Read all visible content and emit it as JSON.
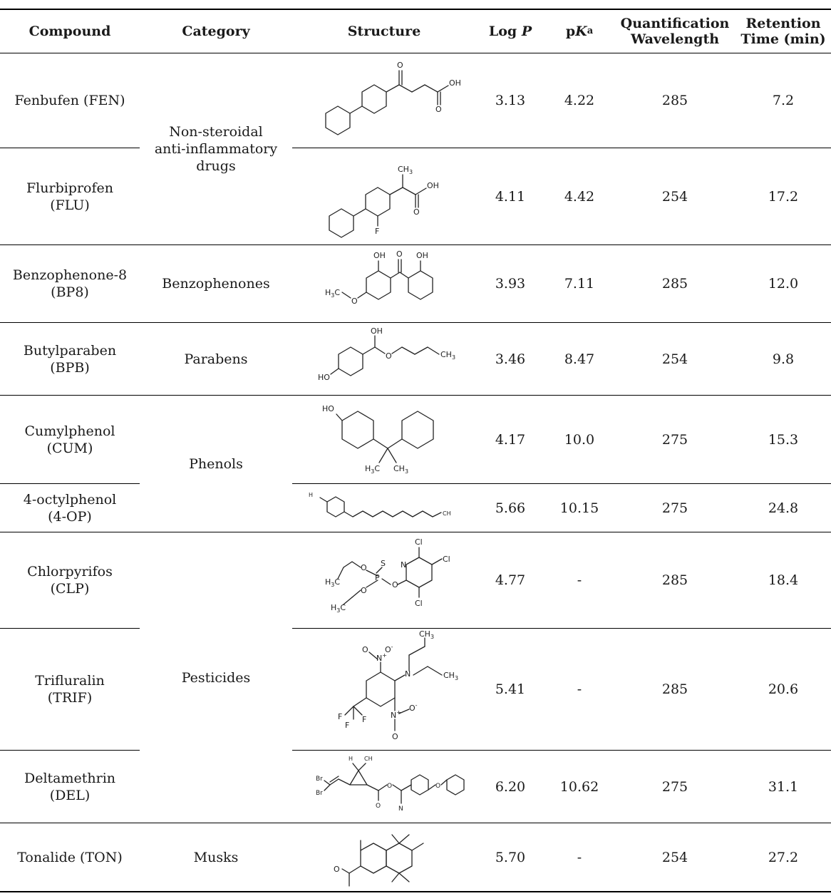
{
  "headers": {
    "compound": "Compound",
    "category": "Category",
    "structure": "Structure",
    "logp": "Log",
    "logp_sym": "P",
    "pka_p": "p",
    "pka_k": "K",
    "pka_sub": "a",
    "qw_1": "Quantification",
    "qw_2": "Wavelength",
    "rt_1": "Retention",
    "rt_2": "Time (min)"
  },
  "categories": {
    "nsaid_1": "Non-steroidal",
    "nsaid_2": "anti-inflammatory",
    "nsaid_3": "drugs",
    "benzophenones": "Benzophenones",
    "parabens": "Parabens",
    "phenols": "Phenols",
    "pesticides": "Pesticides",
    "musks": "Musks"
  },
  "rows": [
    {
      "c1": "Fenbufen (FEN)",
      "c2": "",
      "logp": "3.13",
      "pka": "4.22",
      "qw": "285",
      "rt": "7.2"
    },
    {
      "c1": "Flurbiprofen",
      "c2": "(FLU)",
      "logp": "4.11",
      "pka": "4.42",
      "qw": "254",
      "rt": "17.2"
    },
    {
      "c1": "Benzophenone-8",
      "c2": "(BP8)",
      "logp": "3.93",
      "pka": "7.11",
      "qw": "285",
      "rt": "12.0"
    },
    {
      "c1": "Butylparaben",
      "c2": "(BPB)",
      "logp": "3.46",
      "pka": "8.47",
      "qw": "254",
      "rt": "9.8"
    },
    {
      "c1": "Cumylphenol",
      "c2": "(CUM)",
      "logp": "4.17",
      "pka": "10.0",
      "qw": "275",
      "rt": "15.3"
    },
    {
      "c1": "4-octylphenol",
      "c2": "(4-OP)",
      "logp": "5.66",
      "pka": "10.15",
      "qw": "275",
      "rt": "24.8"
    },
    {
      "c1": "Chlorpyrifos",
      "c2": "(CLP)",
      "logp": "4.77",
      "pka": "-",
      "qw": "285",
      "rt": "18.4"
    },
    {
      "c1": "Trifluralin",
      "c2": "(TRIF)",
      "logp": "5.41",
      "pka": "-",
      "qw": "285",
      "rt": "20.6"
    },
    {
      "c1": "Deltamethrin",
      "c2": "(DEL)",
      "logp": "6.20",
      "pka": "10.62",
      "qw": "275",
      "rt": "31.1"
    },
    {
      "c1": "Tonalide (TON)",
      "c2": "",
      "logp": "5.70",
      "pka": "-",
      "qw": "254",
      "rt": "27.2"
    }
  ],
  "atoms": {
    "O": "O",
    "OH": "OH",
    "HO": "HO",
    "F": "F",
    "Cl": "Cl",
    "N": "N",
    "S": "S",
    "P": "P",
    "Br": "Br",
    "CH3": "CH",
    "H3C": "H",
    "three": "3",
    "C": "C",
    "Nplus": "N",
    "plus": "+",
    "minus": "-"
  }
}
